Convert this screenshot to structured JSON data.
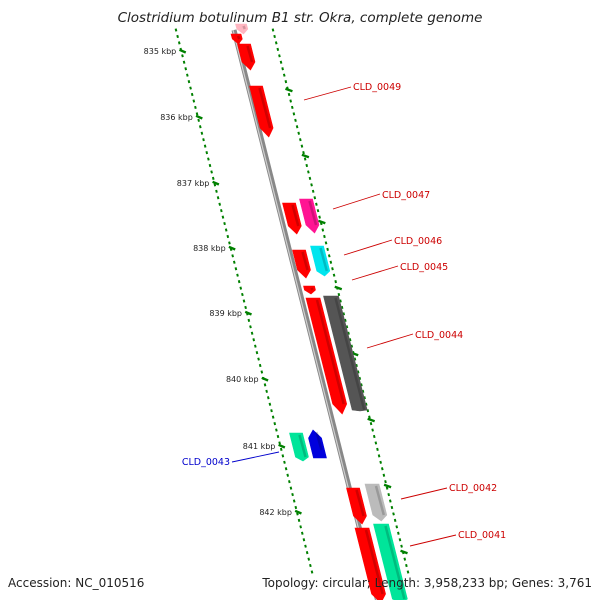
{
  "title": "Clostridium botulinum B1 str. Okra, complete genome",
  "footer": {
    "accession": "Accession: NC_010516",
    "topology": "Topology: circular; Length: 3,958,233 bp; Genes: 3,761"
  },
  "axis": {
    "unit": "kbp",
    "ticks": [
      "835 kbp",
      "836 kbp",
      "837 kbp",
      "838 kbp",
      "839 kbp",
      "840 kbp",
      "841 kbp",
      "842 kbp"
    ]
  },
  "colors": {
    "red": "#ff0000",
    "magenta": "#ff1493",
    "cyan": "#00e5ee",
    "darkgray": "#555555",
    "lightgray": "#bbbbbb",
    "spring": "#00e59a",
    "blue": "#0000dd",
    "pink": "#ffb6c1",
    "label_red": "#cc0000",
    "label_blue": "#0000cc",
    "tick_green": "#008000",
    "backbone": "#888888"
  },
  "labels": [
    {
      "text": "CLD_0049",
      "color": "label_red"
    },
    {
      "text": "CLD_0047",
      "color": "label_red"
    },
    {
      "text": "CLD_0046",
      "color": "label_red"
    },
    {
      "text": "CLD_0045",
      "color": "label_red"
    },
    {
      "text": "CLD_0044",
      "color": "label_red"
    },
    {
      "text": "CLD_0043",
      "color": "label_blue"
    },
    {
      "text": "CLD_0042",
      "color": "label_red"
    },
    {
      "text": "CLD_0041",
      "color": "label_red"
    }
  ],
  "genes": [
    {
      "color": "pink"
    },
    {
      "color": "red"
    },
    {
      "color": "red"
    },
    {
      "color": "red"
    },
    {
      "color": "red"
    },
    {
      "color": "magenta"
    },
    {
      "color": "red"
    },
    {
      "color": "cyan"
    },
    {
      "color": "red"
    },
    {
      "color": "red"
    },
    {
      "color": "darkgray"
    },
    {
      "color": "spring"
    },
    {
      "color": "blue"
    },
    {
      "color": "red"
    },
    {
      "color": "lightgray"
    },
    {
      "color": "red"
    },
    {
      "color": "spring"
    }
  ]
}
